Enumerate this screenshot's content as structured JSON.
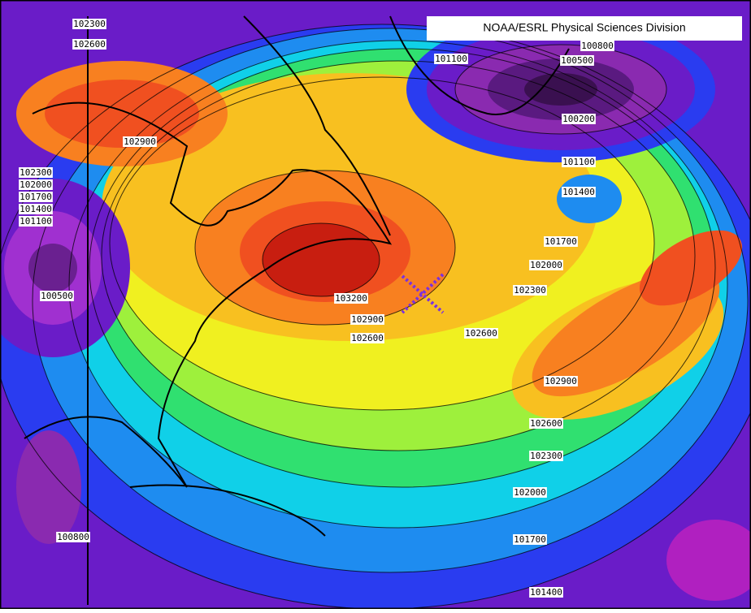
{
  "header": {
    "title": "NOAA/ESRL Physical Sciences Division"
  },
  "contour_labels": [
    "102300",
    "102600",
    "101100",
    "100800",
    "100500",
    "100200",
    "102900",
    "101100",
    "101400",
    "102300",
    "102000",
    "101700",
    "101400",
    "101100",
    "100500",
    "101700",
    "102000",
    "102300",
    "103200",
    "102900",
    "102600",
    "102600",
    "102900",
    "102600",
    "102300",
    "102000",
    "101700",
    "101400",
    "100800"
  ]
}
